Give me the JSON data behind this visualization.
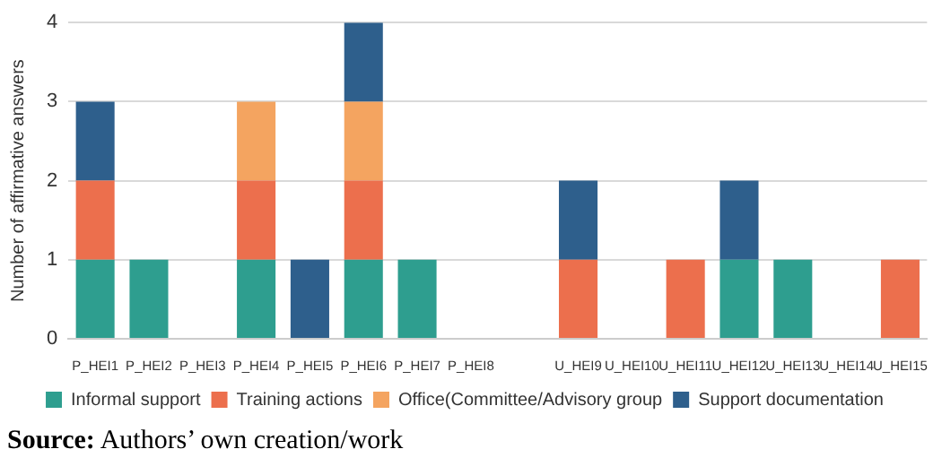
{
  "chart_data": {
    "type": "bar",
    "stacked": true,
    "ylabel": "Number of affirmative answers",
    "categories": [
      "P_HEI1",
      "P_HEI2",
      "P_HEI3",
      "P_HEI4",
      "P_HEI5",
      "P_HEI6",
      "P_HEI7",
      "P_HEI8",
      null,
      "U_HEI9",
      "U_HEI10",
      "U_HEI11",
      "U_HEI12",
      "U_HEI13",
      "U_HEI14",
      "U_HEI15"
    ],
    "series": [
      {
        "name": "Informal support",
        "color": "#2e9e8f",
        "values": [
          1,
          1,
          0,
          1,
          0,
          1,
          1,
          0,
          null,
          0,
          0,
          0,
          1,
          1,
          0,
          0
        ]
      },
      {
        "name": "Training actions",
        "color": "#ec6f4d",
        "values": [
          1,
          0,
          0,
          1,
          0,
          1,
          0,
          0,
          null,
          1,
          0,
          1,
          0,
          0,
          0,
          1
        ]
      },
      {
        "name": "Office(Committee/Advisory group",
        "color": "#f4a460",
        "values": [
          0,
          0,
          0,
          1,
          0,
          1,
          0,
          0,
          null,
          0,
          0,
          0,
          0,
          0,
          0,
          0
        ]
      },
      {
        "name": "Support documentation",
        "color": "#2e5f8c",
        "values": [
          1,
          0,
          0,
          0,
          1,
          1,
          0,
          0,
          null,
          1,
          0,
          0,
          1,
          0,
          0,
          0
        ]
      }
    ],
    "ylim": [
      0,
      4
    ],
    "yticks": [
      0,
      1,
      2,
      3,
      4
    ],
    "grid": "y",
    "legend": "bottom",
    "annotations": [
      "Source: Authors’ own creation/work"
    ]
  }
}
